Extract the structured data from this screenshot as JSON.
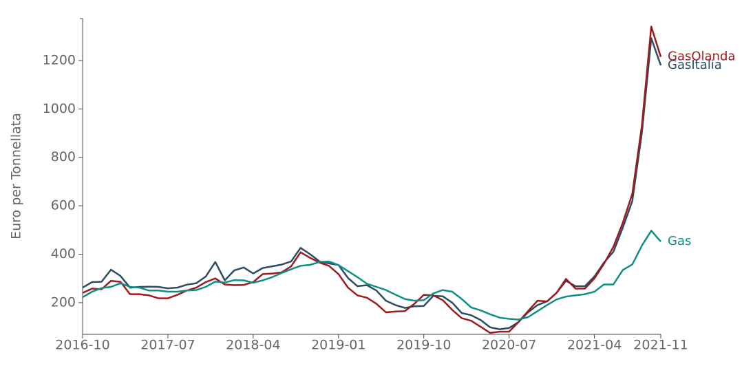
{
  "chart_data": {
    "type": "line",
    "y_label": "Euro per Tonnellata",
    "x": [
      "2016-10",
      "2016-11",
      "2016-12",
      "2017-01",
      "2017-02",
      "2017-03",
      "2017-04",
      "2017-05",
      "2017-06",
      "2017-07",
      "2017-08",
      "2017-09",
      "2017-10",
      "2017-11",
      "2017-12",
      "2018-01",
      "2018-02",
      "2018-03",
      "2018-04",
      "2018-05",
      "2018-06",
      "2018-07",
      "2018-08",
      "2018-09",
      "2018-10",
      "2018-11",
      "2018-12",
      "2019-01",
      "2019-02",
      "2019-03",
      "2019-04",
      "2019-05",
      "2019-06",
      "2019-07",
      "2019-08",
      "2019-09",
      "2019-10",
      "2019-11",
      "2019-12",
      "2020-01",
      "2020-02",
      "2020-03",
      "2020-04",
      "2020-05",
      "2020-06",
      "2020-07",
      "2020-08",
      "2020-09",
      "2020-10",
      "2020-11",
      "2020-12",
      "2021-01",
      "2021-02",
      "2021-03",
      "2021-04",
      "2021-05",
      "2021-06",
      "2021-07",
      "2021-08",
      "2021-09",
      "2021-10",
      "2021-11"
    ],
    "xticks": [
      "2016-10",
      "2017-07",
      "2018-04",
      "2019-01",
      "2019-10",
      "2020-07",
      "2021-04",
      "2021-11"
    ],
    "ylim": [
      69,
      1373
    ],
    "yticks": [
      200,
      400,
      600,
      800,
      1000,
      1200
    ],
    "series": [
      {
        "name": "GasItalia",
        "color": "#2b4c63",
        "values": [
          262,
          285,
          286,
          336,
          310,
          262,
          265,
          266,
          265,
          259,
          262,
          274,
          280,
          308,
          368,
          292,
          333,
          345,
          320,
          343,
          350,
          357,
          370,
          426,
          400,
          370,
          362,
          355,
          302,
          268,
          272,
          250,
          208,
          190,
          178,
          185,
          186,
          228,
          226,
          200,
          157,
          148,
          128,
          98,
          90,
          95,
          120,
          160,
          190,
          205,
          240,
          290,
          268,
          268,
          308,
          365,
          410,
          510,
          620,
          900,
          1292,
          1180
        ]
      },
      {
        "name": "GasOlanda",
        "color": "#9b1b1f",
        "values": [
          240,
          258,
          255,
          290,
          286,
          235,
          235,
          230,
          218,
          218,
          232,
          250,
          262,
          285,
          300,
          275,
          272,
          273,
          285,
          318,
          320,
          325,
          350,
          408,
          385,
          365,
          352,
          318,
          262,
          230,
          220,
          195,
          160,
          163,
          165,
          195,
          232,
          230,
          210,
          170,
          136,
          125,
          100,
          75,
          80,
          80,
          120,
          165,
          208,
          205,
          240,
          298,
          258,
          258,
          300,
          360,
          430,
          530,
          650,
          930,
          1340,
          1215
        ]
      },
      {
        "name": "Gas",
        "color": "#0e8f84",
        "values": [
          222,
          245,
          260,
          265,
          280,
          265,
          262,
          250,
          250,
          245,
          245,
          250,
          252,
          265,
          287,
          283,
          293,
          292,
          282,
          292,
          305,
          322,
          338,
          352,
          356,
          368,
          370,
          355,
          330,
          305,
          278,
          265,
          252,
          233,
          215,
          208,
          210,
          238,
          252,
          245,
          215,
          180,
          168,
          152,
          138,
          133,
          130,
          140,
          165,
          190,
          213,
          225,
          230,
          235,
          245,
          275,
          275,
          335,
          358,
          435,
          497,
          452
        ]
      }
    ]
  }
}
